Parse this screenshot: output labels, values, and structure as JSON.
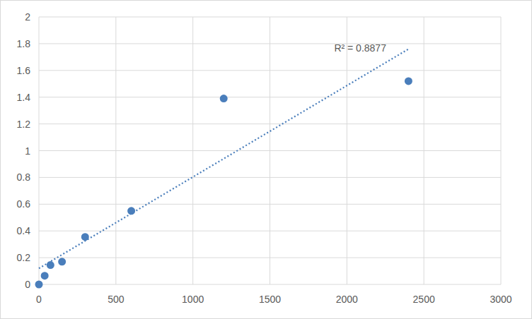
{
  "chart_data": {
    "type": "scatter",
    "annotations": [
      "R² = 0.8877"
    ],
    "series": [
      {
        "type": "scatter",
        "color": "#4a7ebb",
        "marker": "circle",
        "x": [
          0,
          37.5,
          75,
          150,
          300,
          600,
          1200,
          2400
        ],
        "values": [
          0,
          0.065,
          0.145,
          0.17,
          0.355,
          0.55,
          1.39,
          1.52
        ]
      },
      {
        "type": "line",
        "color": "#4a7ebb",
        "line_style": "dotted",
        "x": [
          0,
          2400
        ],
        "values": [
          0.12,
          1.76
        ]
      }
    ],
    "xlim": [
      0,
      3000
    ],
    "xticks": [
      0,
      500,
      1000,
      1500,
      2000,
      2500,
      3000
    ],
    "ylim": [
      0,
      2
    ],
    "yticks": [
      0,
      0.2,
      0.4,
      0.6,
      0.8,
      1,
      1.2,
      1.4,
      1.6,
      1.8,
      2
    ],
    "grid": true
  }
}
